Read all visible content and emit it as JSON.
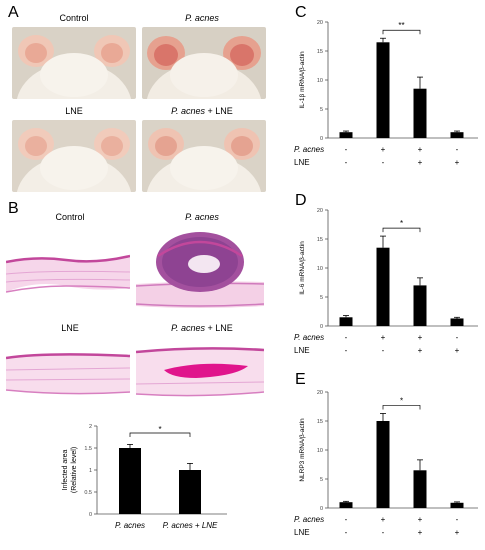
{
  "panel_a": {
    "letter": "A",
    "photos": [
      {
        "label": "Control",
        "italic": false
      },
      {
        "label": "P. acnes",
        "italic": true
      },
      {
        "label": "LNE",
        "italic": false
      },
      {
        "label_italic": "P. acnes",
        "label_rest": " + LNE"
      }
    ]
  },
  "panel_b": {
    "letter": "B",
    "labels": {
      "control": "Control",
      "pacnes": "P. acnes",
      "lne": "LNE",
      "combo_italic": "P. acnes",
      "combo_rest": " + LNE"
    },
    "chart_data": {
      "type": "bar",
      "categories": [
        "P. acnes",
        "P. acnes + LNE"
      ],
      "values": [
        1.5,
        1.0
      ],
      "errors": [
        0.08,
        0.15
      ],
      "ylabel": "Infected area\n(Relative level)",
      "ylim": [
        0,
        2
      ],
      "yticks": [
        "0",
        "0.5",
        "1",
        "1.5",
        "2"
      ],
      "significance": "*"
    }
  },
  "bar_panels": [
    {
      "letter": "C",
      "chart_data": {
        "type": "bar",
        "values": [
          1.0,
          16.5,
          8.5,
          1.0
        ],
        "errors": [
          0.2,
          0.7,
          2.0,
          0.2
        ],
        "ylabel": "IL-1β mRNA/β-actin",
        "ylim": [
          0,
          20
        ],
        "yticks": [
          "0",
          "5",
          "10",
          "15",
          "20"
        ],
        "significance": "**",
        "rows": [
          {
            "name": "P. acnes",
            "signs": [
              "-",
              "+",
              "+",
              "-"
            ]
          },
          {
            "name": "LNE",
            "signs": [
              "-",
              "-",
              "+",
              "+"
            ]
          }
        ]
      }
    },
    {
      "letter": "D",
      "chart_data": {
        "type": "bar",
        "values": [
          1.5,
          13.5,
          7.0,
          1.3
        ],
        "errors": [
          0.3,
          2.0,
          1.3,
          0.2
        ],
        "ylabel": "IL-6 mRNA/β-actin",
        "ylim": [
          0,
          20
        ],
        "yticks": [
          "0",
          "5",
          "10",
          "15",
          "20"
        ],
        "significance": "*",
        "rows": [
          {
            "name": "P. acnes",
            "signs": [
              "-",
              "+",
              "+",
              "-"
            ]
          },
          {
            "name": "LNE",
            "signs": [
              "-",
              "-",
              "+",
              "+"
            ]
          }
        ]
      }
    },
    {
      "letter": "E",
      "chart_data": {
        "type": "bar",
        "values": [
          1.0,
          15.0,
          6.5,
          0.9
        ],
        "errors": [
          0.15,
          1.3,
          1.8,
          0.15
        ],
        "ylabel": "NLRP3 mRNA/β-actin",
        "ylim": [
          0,
          20
        ],
        "yticks": [
          "0",
          "5",
          "10",
          "15",
          "20"
        ],
        "significance": "*",
        "rows": [
          {
            "name": "P. acnes",
            "signs": [
              "-",
              "+",
              "+",
              "-"
            ]
          },
          {
            "name": "LNE",
            "signs": [
              "-",
              "-",
              "+",
              "+"
            ]
          }
        ]
      }
    }
  ]
}
